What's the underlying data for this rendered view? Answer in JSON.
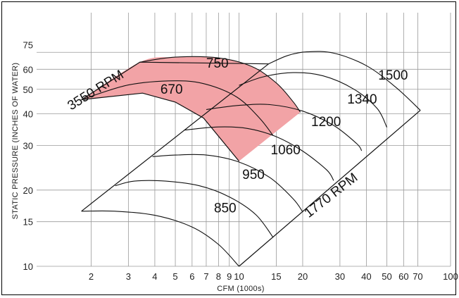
{
  "chart_data": {
    "type": "line",
    "title": "",
    "xlabel": "CFM (1000s)",
    "ylabel": "STATIC PRESSURE (INCHES OF WATER)",
    "x_scale": "log",
    "y_scale": "log",
    "xlim": [
      1,
      100
    ],
    "ylim": [
      10,
      90
    ],
    "grid": true,
    "x_ticks": [
      {
        "value": 2,
        "label": "2"
      },
      {
        "value": 3,
        "label": "3"
      },
      {
        "value": 4,
        "label": "4"
      },
      {
        "value": 5,
        "label": "5"
      },
      {
        "value": 6,
        "label": "6"
      },
      {
        "value": 7,
        "label": "7"
      },
      {
        "value": 8,
        "label": "8"
      },
      {
        "value": 9,
        "label": "9"
      },
      {
        "value": 10,
        "label": "10"
      },
      {
        "value": 15,
        "label": "15"
      },
      {
        "value": 20,
        "label": "20"
      },
      {
        "value": 30,
        "label": "30"
      },
      {
        "value": 40,
        "label": "40"
      },
      {
        "value": 50,
        "label": "50"
      },
      {
        "value": 60,
        "label": "60"
      },
      {
        "value": 70,
        "label": "70"
      },
      {
        "value": 100,
        "label": "100"
      }
    ],
    "y_ticks": [
      {
        "value": 10,
        "label": "10"
      },
      {
        "value": 15,
        "label": "15"
      },
      {
        "value": 20,
        "label": "20"
      },
      {
        "value": 30,
        "label": "30"
      },
      {
        "value": 40,
        "label": "40"
      },
      {
        "value": 50,
        "label": "50"
      },
      {
        "value": 60,
        "label": "60"
      },
      {
        "value": 75,
        "label": "75"
      }
    ],
    "x_grid_values": [
      2,
      3,
      4,
      5,
      6,
      7,
      8,
      9,
      10,
      15,
      20,
      30,
      40,
      50,
      60,
      70,
      100
    ],
    "y_grid_values": [
      10,
      15,
      20,
      30,
      40,
      50,
      60,
      70
    ],
    "highlight_color": "#f2a3a6",
    "line_color": "#111111",
    "grid_color": "#9a9a9a",
    "annotations": [
      {
        "text": "3550 RPM",
        "x": 2.15,
        "y": 48,
        "rotate_deg": -32,
        "kind": "rpm"
      },
      {
        "text": "1770 RPM",
        "x": 28,
        "y": 18.5,
        "rotate_deg": -38,
        "kind": "rpm"
      }
    ],
    "series": [
      {
        "name": "850",
        "label_at": [
          8.6,
          16.3
        ],
        "points": [
          [
            1.8,
            16.5
          ],
          [
            2.6,
            16.5
          ],
          [
            4,
            15.9
          ],
          [
            6,
            14.3
          ],
          [
            8,
            12.2
          ],
          [
            10,
            10
          ]
        ]
      },
      {
        "name": "950",
        "label_at": [
          11.7,
          22.1
        ],
        "points": [
          [
            2.6,
            20.8
          ],
          [
            3.2,
            21.7
          ],
          [
            4.5,
            21.7
          ],
          [
            6.5,
            20.8
          ],
          [
            9,
            18.8
          ],
          [
            12,
            16
          ],
          [
            14.5,
            13
          ]
        ]
      },
      {
        "name": "1060",
        "label_at": [
          16.6,
          27.7
        ],
        "points": [
          [
            3.9,
            27.1
          ],
          [
            5,
            27.5
          ],
          [
            7,
            27.5
          ],
          [
            10,
            25.8
          ],
          [
            14,
            22.4
          ],
          [
            18,
            18.5
          ],
          [
            20,
            16.4
          ]
        ]
      },
      {
        "name": "1200",
        "label_at": [
          25.8,
          35.8
        ],
        "points": [
          [
            5.5,
            34.5
          ],
          [
            8,
            35.5
          ],
          [
            11,
            35
          ],
          [
            15,
            32.5
          ],
          [
            20,
            28.5
          ],
          [
            26,
            24
          ],
          [
            28,
            21.8
          ]
        ]
      },
      {
        "name": "1340",
        "label_at": [
          38.2,
          43.9
        ],
        "points": [
          [
            7,
            41.6
          ],
          [
            10,
            43.2
          ],
          [
            14,
            43.5
          ],
          [
            20,
            41
          ],
          [
            28,
            36
          ],
          [
            36,
            30.5
          ],
          [
            38,
            28.6
          ]
        ]
      },
      {
        "name": "1500",
        "label_at": [
          53.5,
          54.6
        ],
        "points": [
          [
            10,
            51.8
          ],
          [
            13,
            56
          ],
          [
            18,
            58.2
          ],
          [
            25,
            56.5
          ],
          [
            35,
            50
          ],
          [
            45,
            42
          ],
          [
            50,
            35.4
          ]
        ]
      },
      {
        "name": "1770 RPM curve",
        "points": [
          [
            13.8,
            63
          ],
          [
            17,
            68
          ],
          [
            21,
            70.3
          ],
          [
            28,
            69.5
          ],
          [
            40,
            62
          ],
          [
            55,
            51
          ],
          [
            72,
            41.3
          ]
        ]
      },
      {
        "name": "670",
        "label_at": [
          4.8,
          48
        ],
        "points": [
          [
            1.8,
            45.5
          ],
          [
            3,
            52
          ],
          [
            5,
            54
          ],
          [
            7,
            52.3
          ],
          [
            9.8,
            46.5
          ],
          [
            12.5,
            38.5
          ],
          [
            14.5,
            32.8
          ]
        ]
      },
      {
        "name": "750",
        "label_at": [
          7.9,
          60.8
        ],
        "points": [
          [
            3.4,
            64
          ],
          [
            5,
            67
          ],
          [
            8,
            66.5
          ],
          [
            11.5,
            61.5
          ],
          [
            15,
            53
          ],
          [
            18,
            44.7
          ],
          [
            19.5,
            40.6
          ]
        ]
      }
    ],
    "highlight_region": [
      [
        1.8,
        45.5
      ],
      [
        3.4,
        64
      ],
      [
        5,
        67
      ],
      [
        8,
        66.5
      ],
      [
        11.5,
        61.5
      ],
      [
        15,
        53
      ],
      [
        18,
        44.7
      ],
      [
        19.5,
        40.6
      ],
      [
        10,
        26
      ],
      [
        6.8,
        38.5
      ],
      [
        5,
        44.5
      ],
      [
        3.5,
        48.3
      ],
      [
        1.8,
        45.5
      ]
    ],
    "boundaries": [
      {
        "name": "3550 RPM upper",
        "points": [
          [
            1.8,
            45.5
          ],
          [
            3.4,
            64
          ],
          [
            13.8,
            63
          ]
        ]
      },
      {
        "name": "system line",
        "points": [
          [
            1.8,
            16.5
          ],
          [
            13.8,
            63
          ]
        ]
      },
      {
        "name": "lower diagonal",
        "points": [
          [
            10,
            10
          ],
          [
            72,
            41.3
          ]
        ]
      },
      {
        "name": "highlight lower edge",
        "points": [
          [
            1.8,
            45.5
          ],
          [
            3.5,
            48.3
          ],
          [
            5,
            44.5
          ],
          [
            6.8,
            38.5
          ],
          [
            10,
            26
          ]
        ]
      }
    ]
  }
}
